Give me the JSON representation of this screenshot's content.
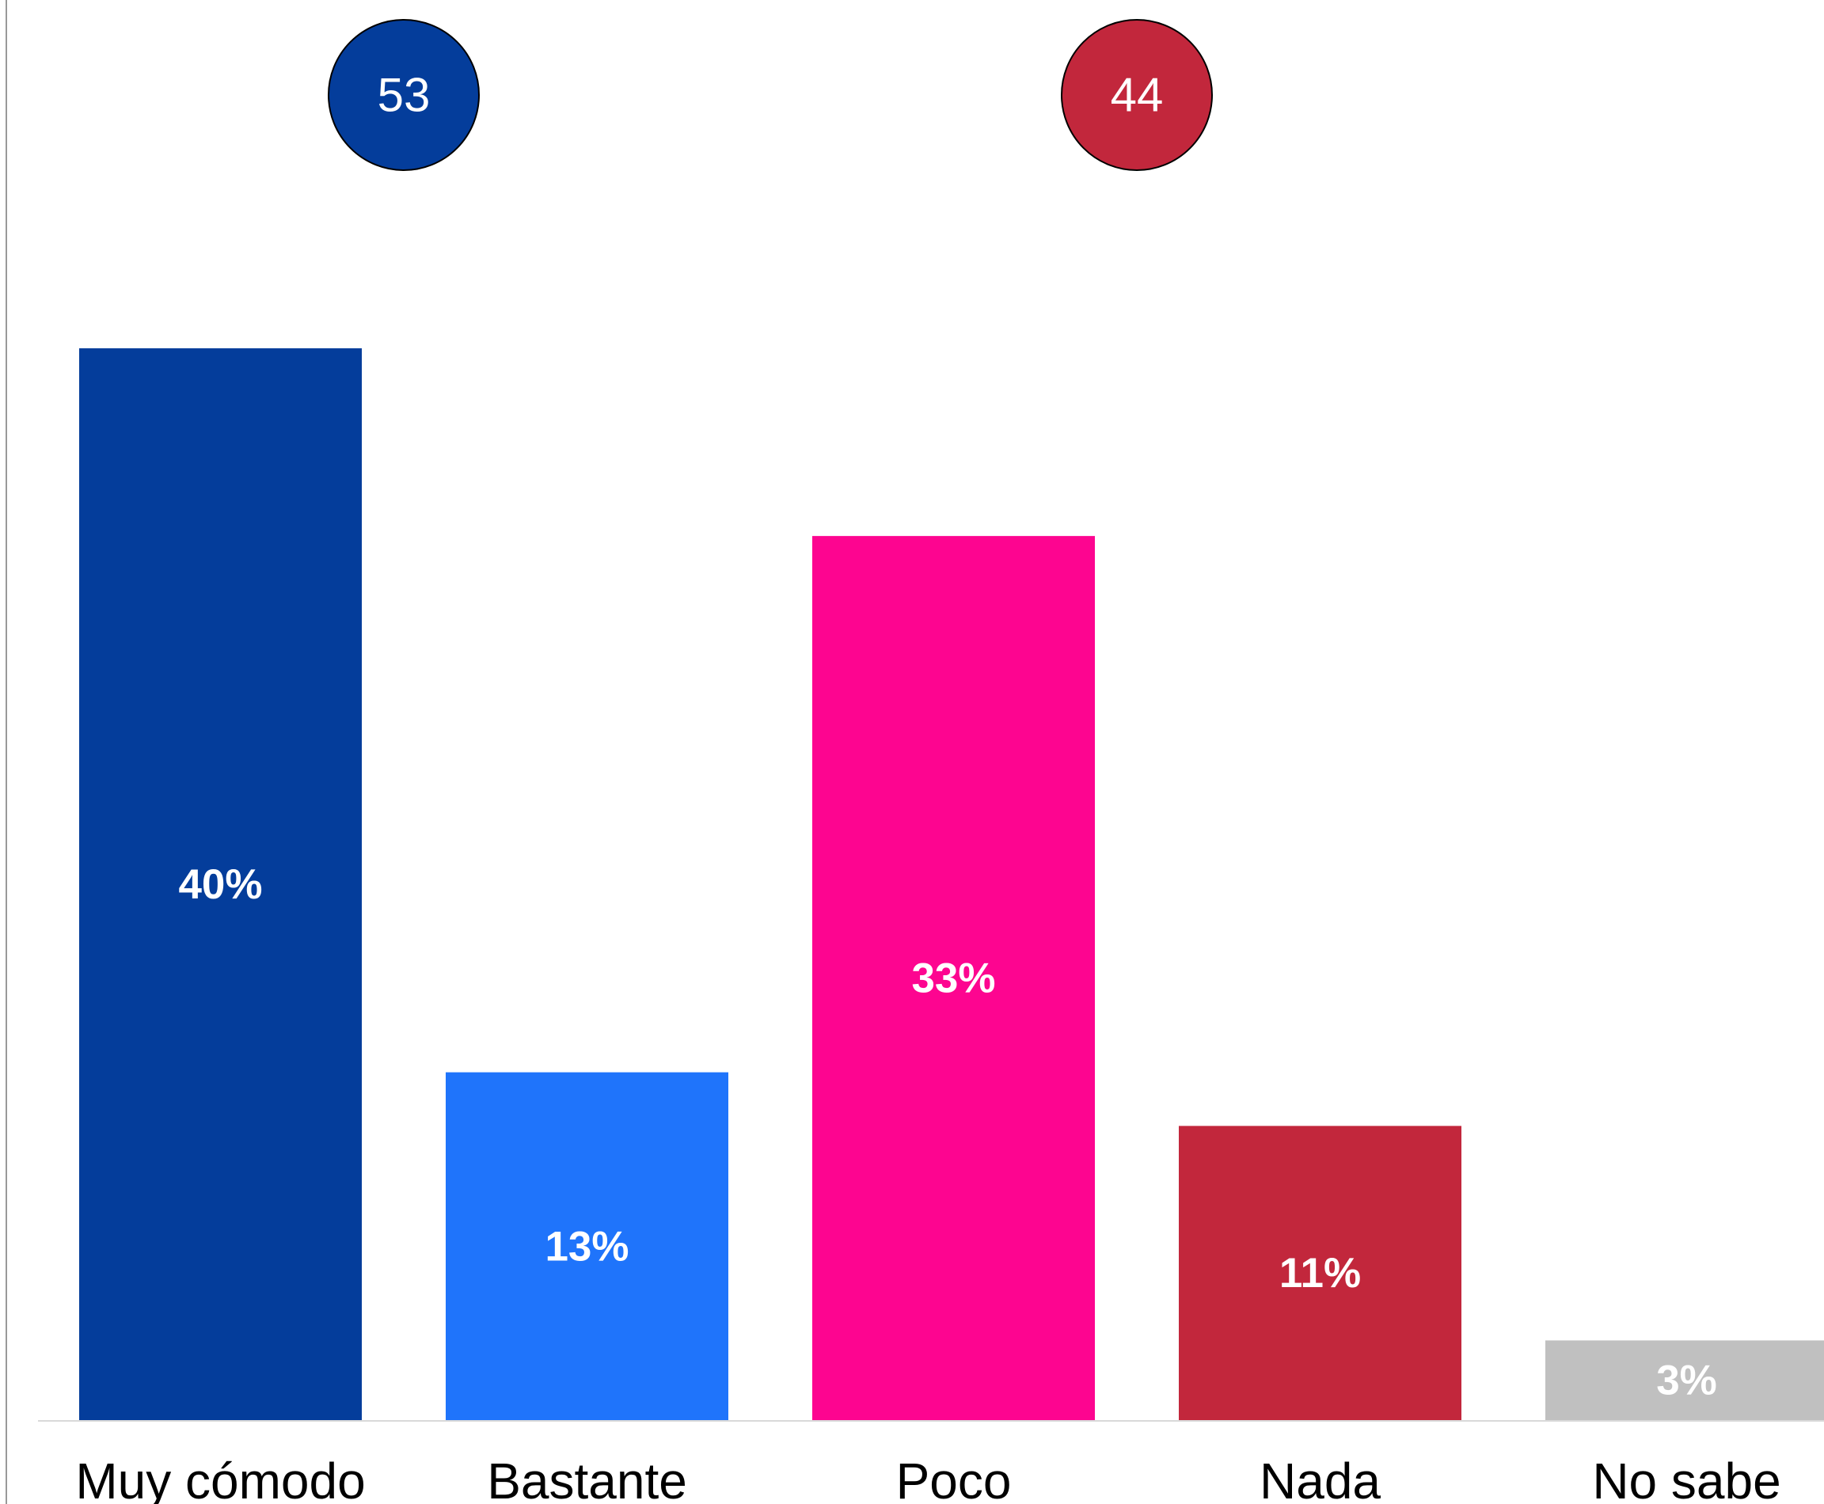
{
  "chart_data": {
    "type": "bar",
    "title": "",
    "xlabel": "",
    "ylabel": "",
    "categories": [
      "Muy cómodo",
      "Bastante",
      "Poco",
      "Nada",
      "No sabe"
    ],
    "values": [
      40,
      13,
      33,
      11,
      3
    ],
    "data_labels": [
      "40%",
      "13%",
      "33%",
      "11%",
      "3%"
    ],
    "bar_colors": [
      "#043d9b",
      "#1f74fb",
      "#fd0590",
      "#c2273c",
      "#c0c0c0"
    ],
    "ylim": [
      0,
      40
    ],
    "grid": false,
    "legend": "none",
    "summary_badges": [
      {
        "value": "53",
        "color": "#043d9b",
        "groups": [
          "Muy cómodo",
          "Bastante"
        ]
      },
      {
        "value": "44",
        "color": "#c2273c",
        "groups": [
          "Poco",
          "Nada"
        ]
      }
    ]
  }
}
